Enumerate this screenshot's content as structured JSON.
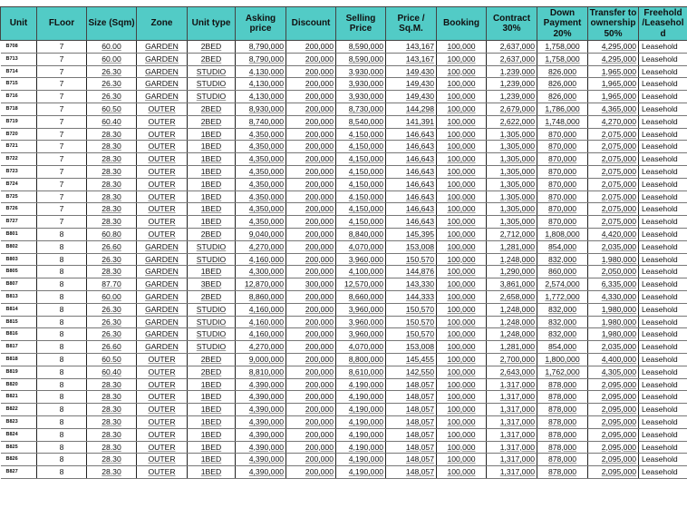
{
  "colors": {
    "header_bg": "#52cbc6",
    "grid": "#222222"
  },
  "columns": [
    "Unit",
    "FLoor",
    "Size (Sqm)",
    "Zone",
    "Unit type",
    "Asking price",
    "Discount",
    "Selling Price",
    "Price / Sq.M.",
    "Booking",
    "Contract 30%",
    "Down Payment 20%",
    "Transfer to ownership 50%",
    "Freehold /Leasehold"
  ],
  "rows": [
    [
      "B708",
      "7",
      "60.00",
      "GARDEN",
      "2BED",
      "8,790,000",
      "200,000",
      "8,590,000",
      "143,167",
      "100,000",
      "2,637,000",
      "1,758,000",
      "4,295,000",
      "Leasehold"
    ],
    [
      "B713",
      "7",
      "60.00",
      "GARDEN",
      "2BED",
      "8,790,000",
      "200,000",
      "8,590,000",
      "143,167",
      "100,000",
      "2,637,000",
      "1,758,000",
      "4,295,000",
      "Leasehold"
    ],
    [
      "B714",
      "7",
      "26.30",
      "GARDEN",
      "STUDIO",
      "4,130,000",
      "200,000",
      "3,930,000",
      "149,430",
      "100,000",
      "1,239,000",
      "826,000",
      "1,965,000",
      "Leasehold"
    ],
    [
      "B715",
      "7",
      "26.30",
      "GARDEN",
      "STUDIO",
      "4,130,000",
      "200,000",
      "3,930,000",
      "149,430",
      "100,000",
      "1,239,000",
      "826,000",
      "1,965,000",
      "Leasehold"
    ],
    [
      "B716",
      "7",
      "26.30",
      "GARDEN",
      "STUDIO",
      "4,130,000",
      "200,000",
      "3,930,000",
      "149,430",
      "100,000",
      "1,239,000",
      "826,000",
      "1,965,000",
      "Leasehold"
    ],
    [
      "B718",
      "7",
      "60.50",
      "OUTER",
      "2BED",
      "8,930,000",
      "200,000",
      "8,730,000",
      "144,298",
      "100,000",
      "2,679,000",
      "1,786,000",
      "4,365,000",
      "Leasehold"
    ],
    [
      "B719",
      "7",
      "60.40",
      "OUTER",
      "2BED",
      "8,740,000",
      "200,000",
      "8,540,000",
      "141,391",
      "100,000",
      "2,622,000",
      "1,748,000",
      "4,270,000",
      "Leasehold"
    ],
    [
      "B720",
      "7",
      "28.30",
      "OUTER",
      "1BED",
      "4,350,000",
      "200,000",
      "4,150,000",
      "146,643",
      "100,000",
      "1,305,000",
      "870,000",
      "2,075,000",
      "Leasehold"
    ],
    [
      "B721",
      "7",
      "28.30",
      "OUTER",
      "1BED",
      "4,350,000",
      "200,000",
      "4,150,000",
      "146,643",
      "100,000",
      "1,305,000",
      "870,000",
      "2,075,000",
      "Leasehold"
    ],
    [
      "B722",
      "7",
      "28.30",
      "OUTER",
      "1BED",
      "4,350,000",
      "200,000",
      "4,150,000",
      "146,643",
      "100,000",
      "1,305,000",
      "870,000",
      "2,075,000",
      "Leasehold"
    ],
    [
      "B723",
      "7",
      "28.30",
      "OUTER",
      "1BED",
      "4,350,000",
      "200,000",
      "4,150,000",
      "146,643",
      "100,000",
      "1,305,000",
      "870,000",
      "2,075,000",
      "Leasehold"
    ],
    [
      "B724",
      "7",
      "28.30",
      "OUTER",
      "1BED",
      "4,350,000",
      "200,000",
      "4,150,000",
      "146,643",
      "100,000",
      "1,305,000",
      "870,000",
      "2,075,000",
      "Leasehold"
    ],
    [
      "B725",
      "7",
      "28.30",
      "OUTER",
      "1BED",
      "4,350,000",
      "200,000",
      "4,150,000",
      "146,643",
      "100,000",
      "1,305,000",
      "870,000",
      "2,075,000",
      "Leasehold"
    ],
    [
      "B726",
      "7",
      "28.30",
      "OUTER",
      "1BED",
      "4,350,000",
      "200,000",
      "4,150,000",
      "146,643",
      "100,000",
      "1,305,000",
      "870,000",
      "2,075,000",
      "Leasehold"
    ],
    [
      "B727",
      "7",
      "28.30",
      "OUTER",
      "1BED",
      "4,350,000",
      "200,000",
      "4,150,000",
      "146,643",
      "100,000",
      "1,305,000",
      "870,000",
      "2,075,000",
      "Leasehold"
    ],
    [
      "B801",
      "8",
      "60.80",
      "OUTER",
      "2BED",
      "9,040,000",
      "200,000",
      "8,840,000",
      "145,395",
      "100,000",
      "2,712,000",
      "1,808,000",
      "4,420,000",
      "Leasehold"
    ],
    [
      "B802",
      "8",
      "26.60",
      "GARDEN",
      "STUDIO",
      "4,270,000",
      "200,000",
      "4,070,000",
      "153,008",
      "100,000",
      "1,281,000",
      "854,000",
      "2,035,000",
      "Leasehold"
    ],
    [
      "B803",
      "8",
      "26.30",
      "GARDEN",
      "STUDIO",
      "4,160,000",
      "200,000",
      "3,960,000",
      "150,570",
      "100,000",
      "1,248,000",
      "832,000",
      "1,980,000",
      "Leasehold"
    ],
    [
      "B805",
      "8",
      "28.30",
      "GARDEN",
      "1BED",
      "4,300,000",
      "200,000",
      "4,100,000",
      "144,876",
      "100,000",
      "1,290,000",
      "860,000",
      "2,050,000",
      "Leasehold"
    ],
    [
      "B807",
      "8",
      "87.70",
      "GARDEN",
      "3BED",
      "12,870,000",
      "300,000",
      "12,570,000",
      "143,330",
      "100,000",
      "3,861,000",
      "2,574,000",
      "6,335,000",
      "Leasehold"
    ],
    [
      "B813",
      "8",
      "60.00",
      "GARDEN",
      "2BED",
      "8,860,000",
      "200,000",
      "8,660,000",
      "144,333",
      "100,000",
      "2,658,000",
      "1,772,000",
      "4,330,000",
      "Leasehold"
    ],
    [
      "B814",
      "8",
      "26.30",
      "GARDEN",
      "STUDIO",
      "4,160,000",
      "200,000",
      "3,960,000",
      "150,570",
      "100,000",
      "1,248,000",
      "832,000",
      "1,980,000",
      "Leasehold"
    ],
    [
      "B815",
      "8",
      "26.30",
      "GARDEN",
      "STUDIO",
      "4,160,000",
      "200,000",
      "3,960,000",
      "150,570",
      "100,000",
      "1,248,000",
      "832,000",
      "1,980,000",
      "Leasehold"
    ],
    [
      "B816",
      "8",
      "26.30",
      "GARDEN",
      "STUDIO",
      "4,160,000",
      "200,000",
      "3,960,000",
      "150,570",
      "100,000",
      "1,248,000",
      "832,000",
      "1,980,000",
      "Leasehold"
    ],
    [
      "B817",
      "8",
      "26.60",
      "GARDEN",
      "STUDIO",
      "4,270,000",
      "200,000",
      "4,070,000",
      "153,008",
      "100,000",
      "1,281,000",
      "854,000",
      "2,035,000",
      "Leasehold"
    ],
    [
      "B818",
      "8",
      "60.50",
      "OUTER",
      "2BED",
      "9,000,000",
      "200,000",
      "8,800,000",
      "145,455",
      "100,000",
      "2,700,000",
      "1,800,000",
      "4,400,000",
      "Leasehold"
    ],
    [
      "B819",
      "8",
      "60.40",
      "OUTER",
      "2BED",
      "8,810,000",
      "200,000",
      "8,610,000",
      "142,550",
      "100,000",
      "2,643,000",
      "1,762,000",
      "4,305,000",
      "Leasehold"
    ],
    [
      "B820",
      "8",
      "28.30",
      "OUTER",
      "1BED",
      "4,390,000",
      "200,000",
      "4,190,000",
      "148,057",
      "100,000",
      "1,317,000",
      "878,000",
      "2,095,000",
      "Leasehold"
    ],
    [
      "B821",
      "8",
      "28.30",
      "OUTER",
      "1BED",
      "4,390,000",
      "200,000",
      "4,190,000",
      "148,057",
      "100,000",
      "1,317,000",
      "878,000",
      "2,095,000",
      "Leasehold"
    ],
    [
      "B822",
      "8",
      "28.30",
      "OUTER",
      "1BED",
      "4,390,000",
      "200,000",
      "4,190,000",
      "148,057",
      "100,000",
      "1,317,000",
      "878,000",
      "2,095,000",
      "Leasehold"
    ],
    [
      "B823",
      "8",
      "28.30",
      "OUTER",
      "1BED",
      "4,390,000",
      "200,000",
      "4,190,000",
      "148,057",
      "100,000",
      "1,317,000",
      "878,000",
      "2,095,000",
      "Leasehold"
    ],
    [
      "B824",
      "8",
      "28.30",
      "OUTER",
      "1BED",
      "4,390,000",
      "200,000",
      "4,190,000",
      "148,057",
      "100,000",
      "1,317,000",
      "878,000",
      "2,095,000",
      "Leasehold"
    ],
    [
      "B825",
      "8",
      "28.30",
      "OUTER",
      "1BED",
      "4,390,000",
      "200,000",
      "4,190,000",
      "148,057",
      "100,000",
      "1,317,000",
      "878,000",
      "2,095,000",
      "Leasehold"
    ],
    [
      "B826",
      "8",
      "28.30",
      "OUTER",
      "1BED",
      "4,390,000",
      "200,000",
      "4,190,000",
      "148,057",
      "100,000",
      "1,317,000",
      "878,000",
      "2,095,000",
      "Leasehold"
    ],
    [
      "B827",
      "8",
      "28.30",
      "OUTER",
      "1BED",
      "4,390,000",
      "200,000",
      "4,190,000",
      "148,057",
      "100,000",
      "1,317,000",
      "878,000",
      "2,095,000",
      "Leasehold"
    ]
  ]
}
